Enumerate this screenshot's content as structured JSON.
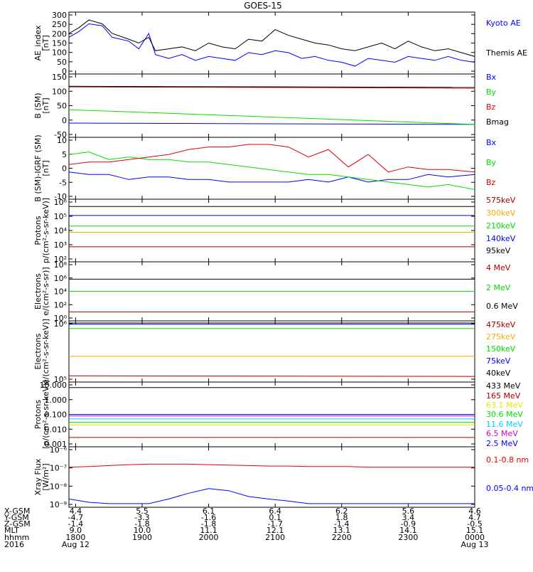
{
  "title": "GOES-15",
  "x_ticks": [
    "1800",
    "1900",
    "2000",
    "2100",
    "2200",
    "2300",
    "0000"
  ],
  "colors": {
    "black": "#000000",
    "blue": "#0000ff",
    "green": "#00dd00",
    "red": "#dd0000",
    "darkred": "#aa0000",
    "orange": "#ffaa00",
    "cyan": "#00ccff",
    "yellow": "#e6e600",
    "magenta": "#cc00cc"
  },
  "ephemeris": {
    "labels": [
      "X-GSM",
      "Y-GSM",
      "Z-GSM",
      "MLT",
      "hhmm",
      "2016"
    ],
    "columns": [
      [
        "4.4",
        "-4.7",
        "-1.4",
        "9.0",
        "1800",
        "Aug 12"
      ],
      [
        "5.5",
        "-3.3",
        "-1.8",
        "10.0",
        "1900",
        ""
      ],
      [
        "6.1",
        "-1.6",
        "-1.8",
        "11.1",
        "2000",
        ""
      ],
      [
        "6.4",
        "0.1",
        "-1.7",
        "12.1",
        "2100",
        ""
      ],
      [
        "6.2",
        "1.8",
        "-1.4",
        "13.1",
        "2200",
        ""
      ],
      [
        "5.6",
        "3.4",
        "-0.9",
        "14.1",
        "2300",
        ""
      ],
      [
        "4.6",
        "4.7",
        "-0.5",
        "15.1",
        "0000",
        "Aug 13"
      ]
    ]
  },
  "chart_data": [
    {
      "type": "line",
      "ylabel": [
        "AE_index",
        "[nT]"
      ],
      "yticks": [
        "300",
        "250",
        "200",
        "150",
        "100",
        "50",
        "0"
      ],
      "ylim": [
        0,
        300
      ],
      "x": [
        17.9,
        18.05,
        18.2,
        18.4,
        18.55,
        18.8,
        18.95,
        19.1,
        19.2,
        19.4,
        19.6,
        19.8,
        20.0,
        20.2,
        20.4,
        20.6,
        20.8,
        21.0,
        21.2,
        21.4,
        21.6,
        21.8,
        22.0,
        22.2,
        22.4,
        22.6,
        22.8,
        23.0,
        23.2,
        23.4,
        23.6,
        23.8,
        24.0
      ],
      "series": [
        {
          "name": "Kyoto AE",
          "color": "blue",
          "values": [
            180,
            210,
            250,
            240,
            180,
            160,
            120,
            200,
            90,
            70,
            90,
            60,
            80,
            70,
            60,
            100,
            90,
            110,
            100,
            70,
            80,
            60,
            50,
            30,
            70,
            60,
            50,
            80,
            70,
            60,
            80,
            60,
            50
          ]
        },
        {
          "name": "Themis AE",
          "color": "black",
          "values": [
            200,
            230,
            270,
            250,
            200,
            170,
            150,
            180,
            110,
            120,
            130,
            110,
            150,
            130,
            120,
            170,
            160,
            220,
            190,
            170,
            150,
            140,
            120,
            110,
            130,
            150,
            120,
            160,
            130,
            110,
            120,
            100,
            80
          ]
        }
      ]
    },
    {
      "type": "line",
      "ylabel": [
        "B (SM)",
        "[nT]"
      ],
      "yticks": [
        "150",
        "100",
        "50",
        "0",
        "-50"
      ],
      "ylim": [
        -70,
        150
      ],
      "x": [
        17.9,
        24.0
      ],
      "series": [
        {
          "name": "Bx",
          "color": "blue",
          "values": [
            -25,
            -30
          ]
        },
        {
          "name": "By",
          "color": "green",
          "values": [
            25,
            -30
          ]
        },
        {
          "name": "Bz",
          "color": "red",
          "values": [
            110,
            105
          ]
        },
        {
          "name": "Bmag",
          "color": "black",
          "values": [
            112,
            108
          ]
        }
      ]
    },
    {
      "type": "line",
      "ylabel": [
        "B (SM)-IGRF (SM)",
        "[nT]"
      ],
      "yticks": [
        "10",
        "5",
        "0",
        "-5",
        "-10"
      ],
      "ylim": [
        -12,
        11
      ],
      "x": [
        17.9,
        18.2,
        18.5,
        18.8,
        19.1,
        19.4,
        19.7,
        20.0,
        20.3,
        20.6,
        20.9,
        21.2,
        21.5,
        21.8,
        22.1,
        22.4,
        22.7,
        23.0,
        23.3,
        23.6,
        24.0
      ],
      "series": [
        {
          "name": "Bx",
          "color": "blue",
          "values": [
            -2,
            -3,
            -3,
            -5,
            -4,
            -4,
            -5,
            -5,
            -6,
            -6,
            -6,
            -6,
            -5,
            -6,
            -4,
            -6,
            -5,
            -5,
            -3,
            -4,
            -3
          ]
        },
        {
          "name": "By",
          "color": "green",
          "values": [
            5,
            6,
            3,
            4,
            3,
            3,
            2,
            2,
            1,
            0,
            -1,
            -2,
            -3,
            -3,
            -4,
            -5,
            -6,
            -7,
            -8,
            -7,
            -9
          ]
        },
        {
          "name": "Bz",
          "color": "red",
          "values": [
            1,
            2,
            2,
            3,
            4,
            5,
            7,
            8,
            8,
            9,
            9,
            8,
            4,
            7,
            0,
            5,
            -2,
            0,
            -1,
            -1,
            -2
          ]
        }
      ]
    },
    {
      "type": "line",
      "ylabel": [
        "Protons",
        "p/(cm²-s-sr-keV)]"
      ],
      "yticks": [
        "10⁶",
        "10⁵",
        "10⁴",
        "10³",
        "10²"
      ],
      "yscale": "log",
      "ylim": [
        30,
        1000000
      ],
      "x": [
        17.9,
        24.0
      ],
      "series": [
        {
          "name": "575keV",
          "color": "darkred",
          "values": [
            300,
            300
          ]
        },
        {
          "name": "300keV",
          "color": "orange",
          "values": [
            4000,
            4000
          ]
        },
        {
          "name": "210keV",
          "color": "green",
          "values": [
            12000,
            12000
          ]
        },
        {
          "name": "140keV",
          "color": "blue",
          "values": [
            80000,
            80000
          ]
        },
        {
          "name": "95keV",
          "color": "black",
          "values": [
            400000,
            400000
          ]
        }
      ]
    },
    {
      "type": "line",
      "ylabel": [
        "Electrons",
        "e/(cm²-s-sr)]"
      ],
      "yticks": [
        "10⁸",
        "10⁶",
        "10⁴",
        "10²",
        "10⁰"
      ],
      "yscale": "log",
      "ylim": [
        1,
        100000000
      ],
      "x": [
        17.9,
        24.0
      ],
      "series": [
        {
          "name": "4 MeV",
          "color": "darkred",
          "values": [
            10,
            10
          ]
        },
        {
          "name": "2 MeV",
          "color": "green",
          "values": [
            10000,
            10000
          ]
        },
        {
          "name": "0.6 MeV",
          "color": "black",
          "values": [
            600000,
            600000
          ]
        }
      ]
    },
    {
      "type": "line",
      "ylabel": [
        "Electrons",
        "e/(cm²-s-sr-keV)]"
      ],
      "yticks": [
        "10⁶",
        "10⁵"
      ],
      "yscale": "log",
      "ylim": [
        100000,
        1000000
      ],
      "x": [
        17.9,
        24.0
      ],
      "series": [
        {
          "name": "475keV",
          "color": "darkred",
          "values": [
            118000,
            115000
          ]
        },
        {
          "name": "275keV",
          "color": "orange",
          "values": [
            260000,
            260000
          ]
        },
        {
          "name": "150keV",
          "color": "green",
          "values": [
            800000,
            800000
          ]
        },
        {
          "name": "75keV",
          "color": "blue",
          "values": [
            950000,
            950000
          ]
        },
        {
          "name": "40keV",
          "color": "black",
          "values": [
            1000000,
            1000000
          ]
        }
      ]
    },
    {
      "type": "line",
      "ylabel": [
        "Protons",
        "[p/(cm²-s-sr-keV)]"
      ],
      "yticks": [
        "10.000",
        "1.000",
        "0.100",
        "0.010",
        "0.001"
      ],
      "yscale": "log",
      "ylim": [
        0.001,
        10
      ],
      "x": [
        17.9,
        24.0
      ],
      "series": [
        {
          "name": "433 MeV",
          "color": "black",
          "values": [
            6,
            6
          ]
        },
        {
          "name": "165 MeV",
          "color": "darkred",
          "values": [
            0.003,
            0.003
          ]
        },
        {
          "name": "63.1 MeV",
          "color": "yellow",
          "values": [
            0.02,
            0.02
          ]
        },
        {
          "name": "30.6 MeV",
          "color": "green",
          "values": [
            0.03,
            0.03
          ]
        },
        {
          "name": "11.6 MeV",
          "color": "cyan",
          "values": [
            0.05,
            0.05
          ]
        },
        {
          "name": "6.5 MeV",
          "color": "magenta",
          "values": [
            0.08,
            0.08
          ]
        },
        {
          "name": "2.5 MeV",
          "color": "blue",
          "values": [
            0.1,
            0.1
          ]
        }
      ]
    },
    {
      "type": "line",
      "ylabel": [
        "Xray Flux",
        "[W/m²]"
      ],
      "yticks": [
        "10⁻⁶",
        "10⁻⁷",
        "10⁻⁸",
        "10⁻⁹"
      ],
      "yscale": "log",
      "ylim": [
        7e-10,
        1e-07
      ],
      "x": [
        17.9,
        18.2,
        18.5,
        18.8,
        19.1,
        19.4,
        19.7,
        20.0,
        20.3,
        20.6,
        20.9,
        21.2,
        21.5,
        21.8,
        22.1,
        22.4,
        22.7,
        23.0,
        23.3,
        23.6,
        24.0
      ],
      "series": [
        {
          "name": "0.1-0.8 nm",
          "color": "red",
          "values": [
            2e-08,
            2.1e-08,
            2.3e-08,
            2.5e-08,
            2.6e-08,
            2.6e-08,
            2.6e-08,
            2.5e-08,
            2.4e-08,
            2.3e-08,
            2.2e-08,
            2.2e-08,
            2.1e-08,
            2.1e-08,
            2.1e-08,
            2e-08,
            2e-08,
            2e-08,
            2e-08,
            2e-08,
            2e-08
          ]
        },
        {
          "name": "0.05-0.4 nm",
          "color": "blue",
          "values": [
            1.2e-09,
            9e-10,
            8e-10,
            8e-10,
            8e-10,
            1.2e-09,
            2e-09,
            3e-09,
            2.5e-09,
            1.5e-09,
            1.2e-09,
            1e-09,
            8e-10,
            8e-10,
            8e-10,
            8e-10,
            8e-10,
            8e-10,
            8e-10,
            8e-10,
            8e-10
          ]
        }
      ]
    }
  ]
}
